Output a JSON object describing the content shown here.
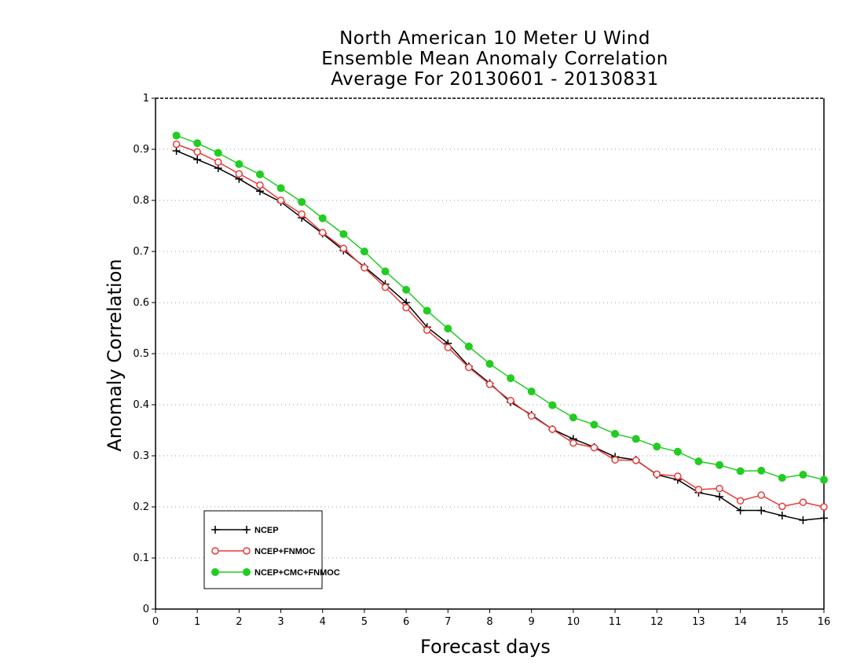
{
  "chart_data": {
    "type": "line",
    "title": [
      "North American 10 Meter U Wind",
      "Ensemble Mean Anomaly Correlation",
      "Average For 20130601 - 20130831"
    ],
    "xlabel": "Forecast days",
    "ylabel": "Anomaly Correlation",
    "xlim": [
      0,
      16
    ],
    "ylim": [
      0,
      1
    ],
    "xticks": [
      0,
      1,
      2,
      3,
      4,
      5,
      6,
      7,
      8,
      9,
      10,
      11,
      12,
      13,
      14,
      15,
      16
    ],
    "yticks": [
      0,
      0.1,
      0.2,
      0.3,
      0.4,
      0.5,
      0.6,
      0.7,
      0.8,
      0.9,
      1
    ],
    "grid": "horizontal dotted",
    "legend_position": "bottom-left",
    "x": [
      0.5,
      1,
      1.5,
      2,
      2.5,
      3,
      3.5,
      4,
      4.5,
      5,
      5.5,
      6,
      6.5,
      7,
      7.5,
      8,
      8.5,
      9,
      9.5,
      10,
      10.5,
      11,
      11.5,
      12,
      12.5,
      13,
      13.5,
      14,
      14.5,
      15,
      15.5,
      16
    ],
    "series": [
      {
        "name": "NCEP",
        "color": "#000000",
        "marker": "plus",
        "values": [
          0.897,
          0.88,
          0.863,
          0.842,
          0.818,
          0.797,
          0.766,
          0.735,
          0.702,
          0.67,
          0.636,
          0.6,
          0.552,
          0.52,
          0.475,
          0.442,
          0.405,
          0.38,
          0.352,
          0.333,
          0.317,
          0.298,
          0.292,
          0.263,
          0.253,
          0.228,
          0.22,
          0.193,
          0.193,
          0.183,
          0.174,
          0.178
        ]
      },
      {
        "name": "NCEP+FNMOC",
        "color": "#e83a3a",
        "marker": "open-circle",
        "values": [
          0.91,
          0.895,
          0.875,
          0.852,
          0.83,
          0.8,
          0.773,
          0.737,
          0.706,
          0.668,
          0.63,
          0.59,
          0.546,
          0.512,
          0.473,
          0.44,
          0.408,
          0.378,
          0.352,
          0.325,
          0.316,
          0.292,
          0.291,
          0.264,
          0.26,
          0.234,
          0.236,
          0.212,
          0.223,
          0.201,
          0.209,
          0.2
        ]
      },
      {
        "name": "NCEP+CMC+FNMOC",
        "color": "#22cc22",
        "marker": "filled-circle",
        "values": [
          0.927,
          0.912,
          0.893,
          0.871,
          0.851,
          0.824,
          0.797,
          0.765,
          0.734,
          0.7,
          0.661,
          0.625,
          0.584,
          0.549,
          0.514,
          0.48,
          0.452,
          0.426,
          0.399,
          0.375,
          0.361,
          0.343,
          0.333,
          0.318,
          0.308,
          0.289,
          0.282,
          0.27,
          0.271,
          0.257,
          0.263,
          0.253
        ]
      }
    ]
  }
}
